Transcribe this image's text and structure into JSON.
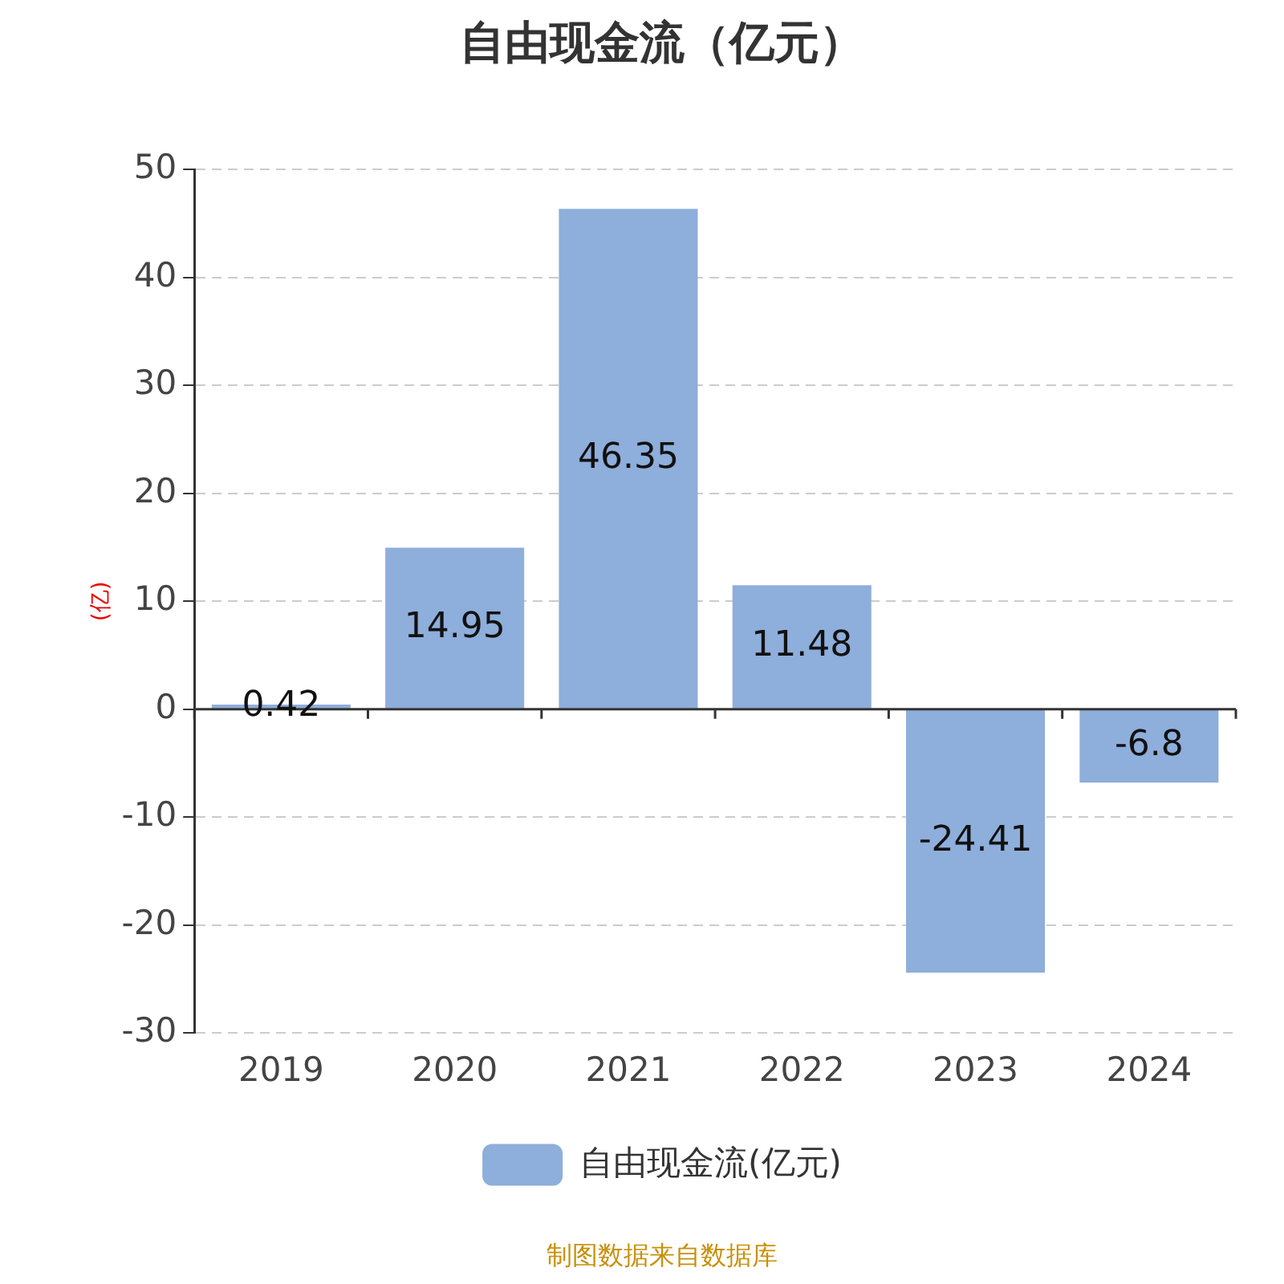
{
  "chart_data": {
    "type": "bar",
    "title": "自由现金流（亿元）",
    "ylabel": "(亿)",
    "categories": [
      "2019",
      "2020",
      "2021",
      "2022",
      "2023",
      "2024"
    ],
    "series": [
      {
        "name": "自由现金流(亿元)",
        "color": "#8eaedb",
        "values": [
          0.42,
          14.95,
          46.35,
          11.48,
          -24.41,
          -6.8
        ]
      }
    ],
    "ylim": [
      -30,
      50
    ],
    "yticks": [
      -30,
      -20,
      -10,
      0,
      10,
      20,
      30,
      40,
      50
    ],
    "grid": "y",
    "legend": "bottom",
    "data_labels": true,
    "annotations": [
      "制图数据来自数据库"
    ]
  }
}
